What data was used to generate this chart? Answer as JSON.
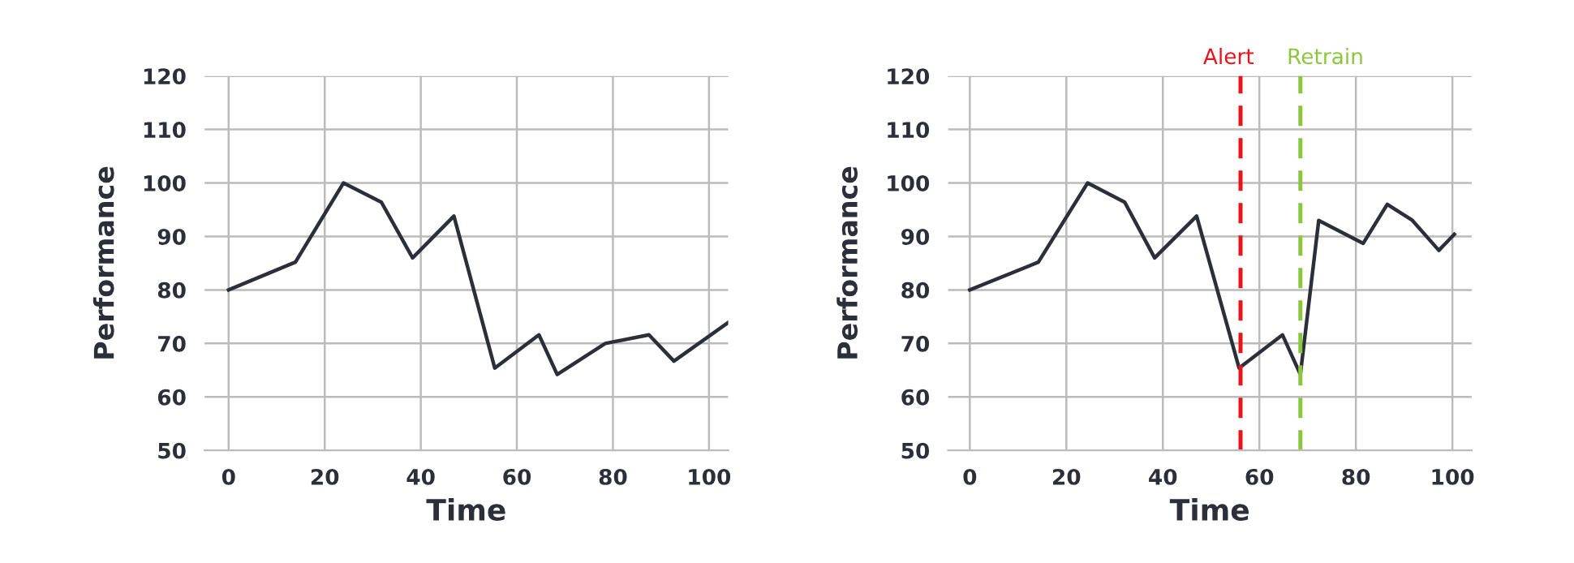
{
  "chart_data": [
    {
      "type": "line",
      "xlabel": "Time",
      "ylabel": "Performance",
      "xlim": [
        -5,
        104
      ],
      "ylim": [
        50,
        120
      ],
      "xticks": [
        0,
        20,
        40,
        60,
        80,
        100
      ],
      "yticks": [
        50,
        60,
        70,
        80,
        90,
        100,
        110,
        120
      ],
      "grid": true,
      "marker": "none",
      "line_style": "solid",
      "series": [
        {
          "color": "#2b2f3a",
          "x": [
            0,
            13.9,
            23.9,
            31.8,
            38.3,
            46.9,
            55.4,
            64.6,
            68.4,
            78.4,
            87.5,
            92.7,
            104
          ],
          "values": [
            80,
            85.2,
            100,
            96.4,
            86,
            93.8,
            65.4,
            71.6,
            64.2,
            70,
            71.6,
            66.7,
            73.9
          ]
        }
      ]
    },
    {
      "type": "line",
      "xlabel": "Time",
      "ylabel": "Performance",
      "xlim": [
        -4.5,
        104
      ],
      "ylim": [
        50,
        120
      ],
      "xticks": [
        0,
        20,
        40,
        60,
        80,
        100
      ],
      "yticks": [
        50,
        60,
        70,
        80,
        90,
        100,
        110,
        120
      ],
      "grid": true,
      "marker": "none",
      "line_style": "solid",
      "series": [
        {
          "color": "#2b2f3a",
          "x": [
            0,
            14.2,
            24.4,
            32.1,
            38.3,
            47,
            55.8,
            64.8,
            68.5,
            72.3,
            81.5,
            86.5,
            91.6,
            97.2,
            100.4
          ],
          "values": [
            80,
            85.2,
            100,
            96.4,
            86,
            93.8,
            65.4,
            71.6,
            64.2,
            93,
            88.7,
            96,
            93.1,
            87.4,
            90.4
          ]
        }
      ],
      "ref_lines": [
        {
          "axis": "x",
          "value": 56.1,
          "label": "Alert",
          "color": "#e8141c",
          "line_style": "dashed"
        },
        {
          "axis": "x",
          "value": 68.5,
          "label": "Retrain",
          "color": "#8cc63f",
          "line_style": "dashed"
        }
      ]
    }
  ]
}
